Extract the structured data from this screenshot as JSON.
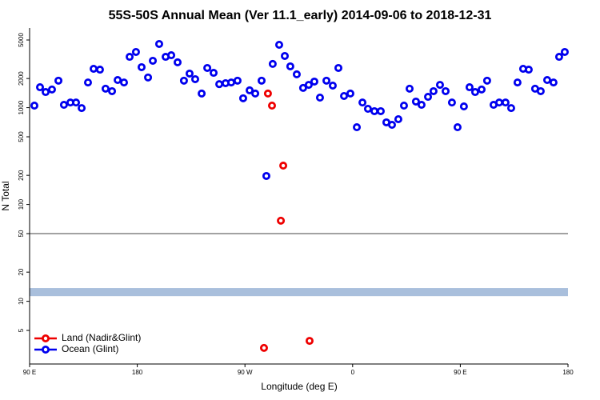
{
  "chart_data": {
    "type": "scatter",
    "title": "55S-50S Annual Mean (Ver 11.1_early)   2014-09-06 to 2018-12-31",
    "x_label": "Longitude (deg E)",
    "y_label": "N Total",
    "log_y": true,
    "legend": "lower left",
    "xlim": [
      90,
      540
    ],
    "ylim": [
      2.25,
      6650
    ],
    "xticks": [
      {
        "value": 90,
        "label": "90 E"
      },
      {
        "value": 180,
        "label": "180"
      },
      {
        "value": 270,
        "label": "90 W"
      },
      {
        "value": 360,
        "label": "0"
      },
      {
        "value": 450,
        "label": "90 E"
      },
      {
        "value": 540,
        "label": "180"
      }
    ],
    "yticks": [
      5,
      10,
      20,
      50,
      100,
      200,
      500,
      1000,
      2000,
      5000
    ],
    "hline": 50,
    "band": [
      11.3,
      13.7
    ],
    "band_color": "#a9bfdc",
    "series": [
      {
        "name": "Land (Nadir&Glint)",
        "color": "#ee0000",
        "x": [
          289.2,
          292.6,
          302.0,
          300.0,
          285.9,
          324.0
        ],
        "values": [
          1400,
          1050,
          252,
          68,
          3.3,
          3.9
        ]
      },
      {
        "name": "Ocean (Glint)",
        "color": "#0000ee",
        "x": [
          94.0,
          98.7,
          103.4,
          108.7,
          114.1,
          118.7,
          124.1,
          128.8,
          133.5,
          138.8,
          143.5,
          148.8,
          153.5,
          158.9,
          163.6,
          168.9,
          173.6,
          178.9,
          183.6,
          189.0,
          193.0,
          198.3,
          203.7,
          208.4,
          213.7,
          219.0,
          223.7,
          228.4,
          233.8,
          238.5,
          243.8,
          248.5,
          253.8,
          258.5,
          263.8,
          268.5,
          273.9,
          278.6,
          283.9,
          287.9,
          293.2,
          298.6,
          303.3,
          307.9,
          313.3,
          318.6,
          323.3,
          328.0,
          332.7,
          338.1,
          343.4,
          348.1,
          352.8,
          358.1,
          363.5,
          368.2,
          372.8,
          378.2,
          383.5,
          388.2,
          392.9,
          398.2,
          402.9,
          407.6,
          412.9,
          417.6,
          423.0,
          427.6,
          433.0,
          437.7,
          443.0,
          447.7,
          453.0,
          457.7,
          462.4,
          467.8,
          472.4,
          477.8,
          482.5,
          487.8,
          492.5,
          497.8,
          502.5,
          507.2,
          512.5,
          517.2,
          522.6,
          527.9,
          532.6,
          537.3
        ],
        "values": [
          1050,
          1625,
          1450,
          1540,
          1900,
          1070,
          1130,
          1130,
          990,
          1820,
          2520,
          2470,
          1570,
          1480,
          1930,
          1820,
          3350,
          3760,
          2620,
          2050,
          3050,
          4550,
          3350,
          3480,
          2940,
          1900,
          2250,
          1970,
          1400,
          2570,
          2290,
          1750,
          1790,
          1820,
          1900,
          1250,
          1510,
          1400,
          1900,
          197,
          2830,
          4460,
          3420,
          2670,
          2210,
          1600,
          1720,
          1860,
          1270,
          1900,
          1690,
          2570,
          1320,
          1400,
          628,
          1130,
          973,
          920,
          920,
          705,
          665,
          760,
          1050,
          1570,
          1156,
          1070,
          1294,
          1480,
          1720,
          1480,
          1130,
          628,
          1030,
          1625,
          1450,
          1540,
          1900,
          1070,
          1130,
          1130,
          990,
          1820,
          2520,
          2470,
          1570,
          1480,
          1930,
          1820,
          3350,
          3760
        ]
      }
    ]
  }
}
